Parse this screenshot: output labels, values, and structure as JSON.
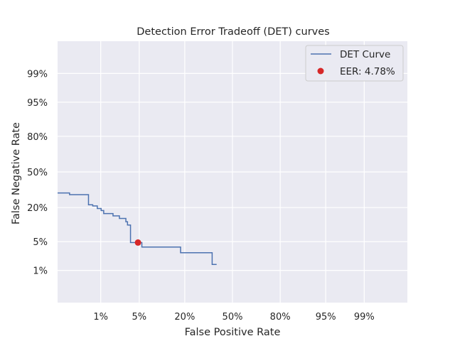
{
  "chart_data": {
    "type": "line",
    "title": "Detection Error Tradeoff (DET) curves",
    "xlabel": "False Positive Rate",
    "ylabel": "False Negative Rate",
    "scale": "probit",
    "x_ticks": [
      {
        "value": 0.01,
        "label": "1%"
      },
      {
        "value": 0.05,
        "label": "5%"
      },
      {
        "value": 0.2,
        "label": "20%"
      },
      {
        "value": 0.5,
        "label": "50%"
      },
      {
        "value": 0.8,
        "label": "80%"
      },
      {
        "value": 0.95,
        "label": "95%"
      },
      {
        "value": 0.99,
        "label": "99%"
      }
    ],
    "y_ticks": [
      {
        "value": 0.01,
        "label": "1%"
      },
      {
        "value": 0.05,
        "label": "5%"
      },
      {
        "value": 0.2,
        "label": "20%"
      },
      {
        "value": 0.5,
        "label": "50%"
      },
      {
        "value": 0.8,
        "label": "80%"
      },
      {
        "value": 0.95,
        "label": "95%"
      },
      {
        "value": 0.99,
        "label": "99%"
      }
    ],
    "xlim": [
      0.001,
      0.999
    ],
    "ylim": [
      0.001,
      0.999
    ],
    "grid": true,
    "legend_position": "top-right",
    "series": [
      {
        "name": "DET Curve",
        "color": "#4c72b0",
        "points": [
          [
            0.001,
            0.31
          ],
          [
            0.002,
            0.31
          ],
          [
            0.002,
            0.296
          ],
          [
            0.0055,
            0.296
          ],
          [
            0.0055,
            0.219
          ],
          [
            0.0068,
            0.219
          ],
          [
            0.0068,
            0.211
          ],
          [
            0.0085,
            0.211
          ],
          [
            0.0085,
            0.194
          ],
          [
            0.0102,
            0.194
          ],
          [
            0.0102,
            0.181
          ],
          [
            0.0115,
            0.181
          ],
          [
            0.0115,
            0.163
          ],
          [
            0.0175,
            0.163
          ],
          [
            0.0175,
            0.15
          ],
          [
            0.023,
            0.15
          ],
          [
            0.023,
            0.136
          ],
          [
            0.03,
            0.136
          ],
          [
            0.03,
            0.12
          ],
          [
            0.032,
            0.12
          ],
          [
            0.032,
            0.105
          ],
          [
            0.036,
            0.105
          ],
          [
            0.036,
            0.0478
          ],
          [
            0.055,
            0.0478
          ],
          [
            0.055,
            0.0381
          ],
          [
            0.18,
            0.0381
          ],
          [
            0.18,
            0.0282
          ],
          [
            0.36,
            0.0282
          ],
          [
            0.36,
            0.0144
          ],
          [
            0.39,
            0.0144
          ]
        ]
      }
    ],
    "eer_point": {
      "name": "EER: 4.78%",
      "x": 0.0478,
      "y": 0.0478,
      "color": "#d62728"
    }
  }
}
